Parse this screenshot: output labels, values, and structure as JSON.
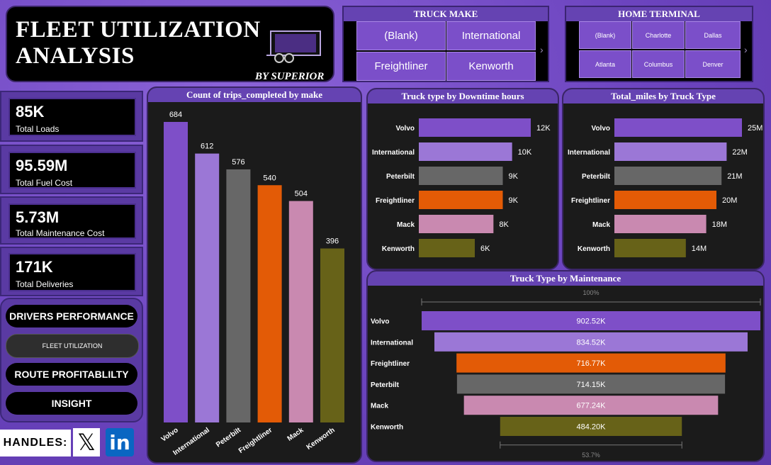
{
  "title": {
    "line1": "FLEET UTILIZATION",
    "line2": "ANALYSIS",
    "by": "BY SUPERIOR"
  },
  "truck_make_slicer": {
    "title": "TRUCK MAKE",
    "options": [
      "(Blank)",
      "International",
      "Freightliner",
      "Kenworth"
    ],
    "more": "›"
  },
  "home_terminal_slicer": {
    "title": "HOME TERMINAL",
    "options": [
      "(Blank)",
      "Charlotte",
      "Dallas",
      "Atlanta",
      "Columbus",
      "Denver"
    ],
    "more": "›"
  },
  "kpis": [
    {
      "value": "85K",
      "label": "Total Loads"
    },
    {
      "value": "95.59M",
      "label": "Total Fuel Cost"
    },
    {
      "value": "5.73M",
      "label": "Total Maintenance Cost"
    },
    {
      "value": "171K",
      "label": "Total Deliveries"
    }
  ],
  "nav": {
    "drivers": "DRIVERS PERFORMANCE",
    "fleet": "FLEET UTILIZATION",
    "route": "ROUTE PROFITABLILTY",
    "insight": "INSIGHT"
  },
  "handles": {
    "label": "HANDLES:",
    "x_icon": "x-logo",
    "linkedin_icon": "linkedin-logo",
    "linkedin_text": "in"
  },
  "colors": {
    "volvo": "#7e4fc8",
    "international": "#9b77d6",
    "peterbilt": "#676767",
    "freightliner": "#e35b06",
    "mack": "#c989b0",
    "kenworth": "#676218"
  },
  "chart_data": [
    {
      "type": "bar",
      "title": "Count of trips_completed by make",
      "categories": [
        "Volvo",
        "International",
        "Peterbilt",
        "Freightliner",
        "Mack",
        "Kenworth"
      ],
      "values": [
        684,
        612,
        576,
        540,
        504,
        396
      ],
      "labels": [
        "684",
        "612",
        "576",
        "540",
        "504",
        "396"
      ],
      "ylim": [
        0,
        684
      ]
    },
    {
      "type": "bar",
      "orientation": "horizontal",
      "title": "Truck type by Downtime hours",
      "categories": [
        "Volvo",
        "International",
        "Peterbilt",
        "Freightliner",
        "Mack",
        "Kenworth"
      ],
      "values": [
        12000,
        10000,
        9000,
        9000,
        8000,
        6000
      ],
      "labels": [
        "12K",
        "10K",
        "9K",
        "9K",
        "8K",
        "6K"
      ]
    },
    {
      "type": "bar",
      "orientation": "horizontal",
      "title": "Total_miles by Truck Type",
      "categories": [
        "Volvo",
        "International",
        "Peterbilt",
        "Freightliner",
        "Mack",
        "Kenworth"
      ],
      "values": [
        25000000,
        22000000,
        21000000,
        20000000,
        18000000,
        14000000
      ],
      "labels": [
        "25M",
        "22M",
        "21M",
        "20M",
        "18M",
        "14M"
      ]
    },
    {
      "type": "funnel",
      "title": "Truck Type by Maintenance",
      "categories": [
        "Volvo",
        "International",
        "Freightliner",
        "Peterbilt",
        "Mack",
        "Kenworth"
      ],
      "values": [
        902520,
        834520,
        716770,
        714150,
        677240,
        484200
      ],
      "labels": [
        "902.52K",
        "834.52K",
        "716.77K",
        "714.15K",
        "677.24K",
        "484.20K"
      ],
      "top_pct": "100%",
      "bottom_pct": "53.7%"
    }
  ]
}
